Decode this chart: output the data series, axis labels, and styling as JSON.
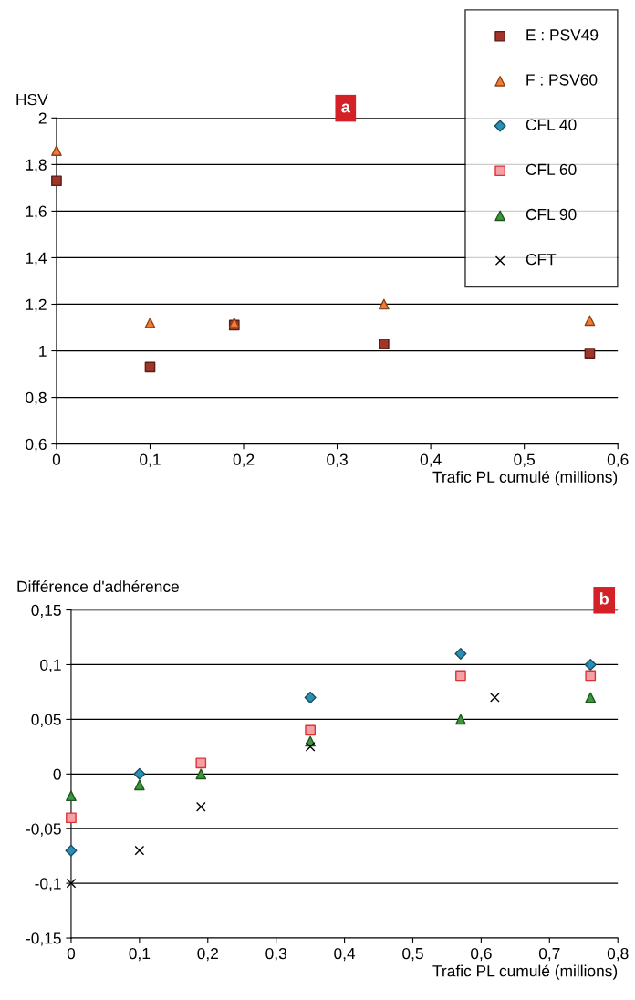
{
  "chart_data": [
    {
      "type": "scatter",
      "ylabel": "HSV",
      "xlabel": "Trafic PL cumulé (millions)",
      "annotations": [
        "a"
      ],
      "xlim": [
        0,
        0.6
      ],
      "xticks": [
        0,
        {
          "value": 0.1,
          "label": "0,1"
        },
        {
          "value": 0.2,
          "label": "0,2"
        },
        {
          "value": 0.3,
          "label": "0,3"
        },
        {
          "value": 0.4,
          "label": "0,4"
        },
        {
          "value": 0.5,
          "label": "0,5"
        },
        {
          "value": 0.6,
          "label": "0,6"
        }
      ],
      "ylim": [
        0.6,
        2
      ],
      "yticks": [
        {
          "value": 0.6,
          "label": "0,6"
        },
        {
          "value": 0.8,
          "label": "0,8"
        },
        1,
        {
          "value": 1.2,
          "label": "1,2"
        },
        {
          "value": 1.4,
          "label": "1,4"
        },
        {
          "value": 1.6,
          "label": "1,6"
        },
        {
          "value": 1.8,
          "label": "1,8"
        },
        2
      ],
      "grid": "y",
      "legend": "top right",
      "series": [
        {
          "name": "E : PSV49",
          "color": "#a0352a",
          "marker": "square",
          "x": [
            0,
            0.1,
            0.19,
            0.35,
            0.57
          ],
          "values": [
            1.73,
            0.93,
            1.11,
            1.03,
            0.99
          ]
        },
        {
          "name": "F : PSV60",
          "color": "#f47b32",
          "marker": "triangle",
          "x": [
            0,
            0.1,
            0.19,
            0.35,
            0.57
          ],
          "values": [
            1.86,
            1.12,
            1.12,
            1.2,
            1.13
          ]
        }
      ]
    },
    {
      "type": "scatter",
      "ylabel": "Différence d'adhérence",
      "xlabel": "Trafic PL cumulé (millions)",
      "annotations": [
        "b"
      ],
      "xlim": [
        0,
        0.8
      ],
      "xticks": [
        0,
        {
          "value": 0.1,
          "label": "0,1"
        },
        {
          "value": 0.2,
          "label": "0,2"
        },
        {
          "value": 0.3,
          "label": "0,3"
        },
        {
          "value": 0.4,
          "label": "0,4"
        },
        {
          "value": 0.5,
          "label": "0,5"
        },
        {
          "value": 0.6,
          "label": "0,6"
        },
        {
          "value": 0.7,
          "label": "0,7"
        },
        {
          "value": 0.8,
          "label": "0,8"
        }
      ],
      "ylim": [
        -0.15,
        0.15
      ],
      "yticks": [
        {
          "value": -0.15,
          "label": "-0,15"
        },
        {
          "value": -0.1,
          "label": "-0,1"
        },
        {
          "value": -0.05,
          "label": "-0,05"
        },
        0,
        {
          "value": 0.05,
          "label": "0,05"
        },
        {
          "value": 0.1,
          "label": "0,1"
        },
        {
          "value": 0.15,
          "label": "0,15"
        }
      ],
      "grid": "y",
      "legend": "top right",
      "series": [
        {
          "name": "CFL 40",
          "color": "#2a8fb5",
          "marker": "diamond",
          "x": [
            0,
            0.1,
            0.19,
            0.35,
            0.57,
            0.76
          ],
          "values": [
            -0.07,
            0,
            null,
            0.07,
            0.11,
            0.1
          ]
        },
        {
          "name": "CFL 60",
          "color": "#f4a0a8",
          "marker": "square",
          "x": [
            0,
            0.1,
            0.19,
            0.35,
            0.57,
            0.76
          ],
          "values": [
            -0.04,
            null,
            0.01,
            0.04,
            0.09,
            0.09
          ]
        },
        {
          "name": "CFL 90",
          "color": "#3a9a3a",
          "marker": "triangle",
          "x": [
            0,
            0.1,
            0.19,
            0.35,
            0.57,
            0.76
          ],
          "values": [
            -0.02,
            -0.01,
            0,
            0.03,
            0.05,
            0.07
          ]
        },
        {
          "name": "CFT",
          "color": "#000000",
          "marker": "cross",
          "x": [
            0,
            0.1,
            0.19,
            0.35,
            0.62
          ],
          "values": [
            -0.1,
            -0.07,
            -0.03,
            0.025,
            0.07
          ]
        }
      ]
    }
  ]
}
